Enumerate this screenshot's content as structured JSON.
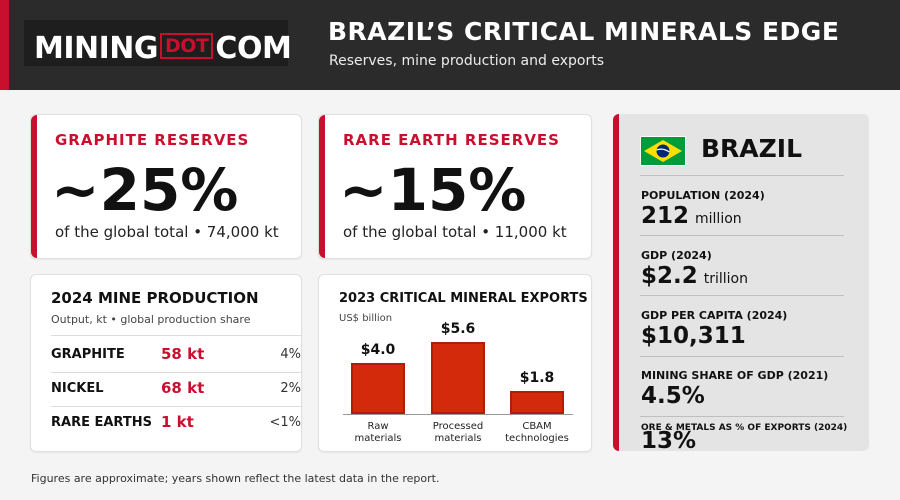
{
  "header": {
    "logo": {
      "left": "MINING",
      "dot": "DOT",
      "right": "COM"
    },
    "title": "BRAZIL’S CRITICAL MINERALS EDGE",
    "subtitle": "Reserves, mine production and exports"
  },
  "cards": {
    "graphite": {
      "label": "GRAPHITE RESERVES",
      "value": "~25%",
      "footnote": "of the global total • 74,000 kt"
    },
    "rare_earth": {
      "label": "RARE EARTH RESERVES",
      "value": "~15%",
      "footnote": "of the global total • 11,000 kt"
    }
  },
  "production": {
    "title": "2024 MINE PRODUCTION",
    "subtitle": "Output, kt • global production share",
    "rows": [
      {
        "name": "GRAPHITE",
        "value": "58 kt",
        "share": "4%"
      },
      {
        "name": "NICKEL",
        "value": "68 kt",
        "share": "2%"
      },
      {
        "name": "RARE EARTHS",
        "value": "1 kt",
        "share": "<1%"
      }
    ]
  },
  "chart_data": {
    "type": "bar",
    "title": "2023 CRITICAL MINERAL EXPORTS",
    "ylabel": "US$ billion",
    "categories": [
      "Raw materials",
      "Processed materials",
      "CBAM technologies"
    ],
    "category_lines": [
      [
        "Raw",
        "materials"
      ],
      [
        "Processed",
        "materials"
      ],
      [
        "CBAM",
        "technologies"
      ]
    ],
    "values": [
      4.0,
      5.6,
      1.8
    ],
    "value_labels": [
      "$4.0",
      "$5.6",
      "$1.8"
    ],
    "ylim": [
      0,
      5.6
    ],
    "grid": false,
    "bar_color": "#d42a0c"
  },
  "country": {
    "name": "BRAZIL",
    "flag_colors": {
      "green": "#009c3b",
      "yellow": "#ffdf00",
      "blue": "#002776"
    },
    "stats": [
      {
        "label": "POPULATION (2024)",
        "value": "212",
        "unit": "million"
      },
      {
        "label": "GDP (2024)",
        "value": "$2.2",
        "unit": "trillion"
      },
      {
        "label": "GDP PER CAPITA (2024)",
        "value": "$10,311",
        "unit": ""
      },
      {
        "label": "MINING SHARE OF GDP (2021)",
        "value": "4.5%",
        "unit": ""
      },
      {
        "label": "ORE & METALS AS % OF EXPORTS (2024)",
        "value": "13%",
        "unit": ""
      }
    ]
  },
  "footnote": "Figures are approximate; years shown reflect the latest data in the report.",
  "colors": {
    "accent": "#c8102e",
    "header_bg": "#2b2b2b"
  }
}
